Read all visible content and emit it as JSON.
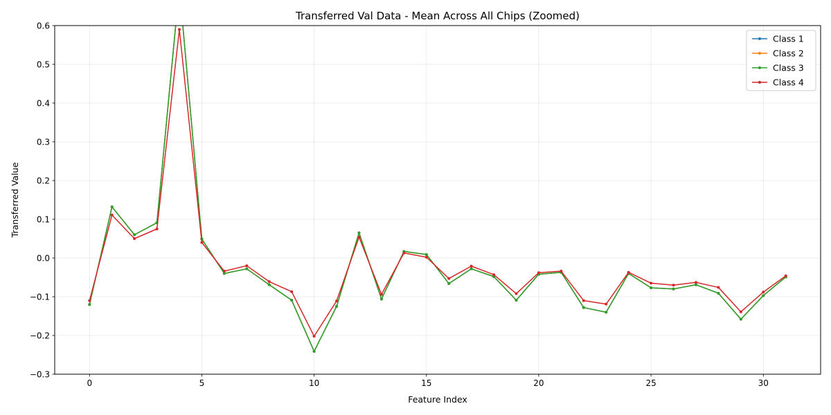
{
  "chart_data": {
    "type": "line",
    "title": "Transferred Val Data - Mean Across All Chips (Zoomed)",
    "xlabel": "Feature Index",
    "ylabel": "Transferred Value",
    "xlim": [
      -1.55,
      32.55
    ],
    "ylim": [
      -0.3,
      0.6
    ],
    "xticks": [
      0,
      5,
      10,
      15,
      20,
      25,
      30
    ],
    "yticks": [
      -0.3,
      -0.2,
      -0.1,
      0.0,
      0.1,
      0.2,
      0.3,
      0.4,
      0.5,
      0.6
    ],
    "grid": true,
    "legend": "upper right",
    "x": [
      0,
      1,
      2,
      3,
      4,
      5,
      6,
      7,
      8,
      9,
      10,
      11,
      12,
      13,
      14,
      15,
      16,
      17,
      18,
      19,
      20,
      21,
      22,
      23,
      24,
      25,
      26,
      27,
      28,
      29,
      30,
      31
    ],
    "series": [
      {
        "name": "Class 1",
        "color": "#1f77b4",
        "values": [
          -0.12,
          0.132,
          0.06,
          0.091,
          0.7,
          0.049,
          -0.04,
          -0.028,
          -0.069,
          -0.109,
          -0.241,
          -0.125,
          0.065,
          -0.106,
          0.017,
          0.009,
          -0.066,
          -0.028,
          -0.048,
          -0.109,
          -0.042,
          -0.037,
          -0.128,
          -0.14,
          -0.04,
          -0.077,
          -0.08,
          -0.069,
          -0.091,
          -0.158,
          -0.097,
          -0.049
        ]
      },
      {
        "name": "Class 2",
        "color": "#ff7f0e",
        "values": [
          -0.12,
          0.132,
          0.06,
          0.091,
          0.7,
          0.049,
          -0.04,
          -0.028,
          -0.069,
          -0.109,
          -0.241,
          -0.125,
          0.065,
          -0.106,
          0.017,
          0.009,
          -0.066,
          -0.028,
          -0.048,
          -0.109,
          -0.042,
          -0.037,
          -0.128,
          -0.14,
          -0.04,
          -0.077,
          -0.08,
          -0.069,
          -0.091,
          -0.158,
          -0.097,
          -0.049
        ]
      },
      {
        "name": "Class 3",
        "color": "#2ca02c",
        "values": [
          -0.12,
          0.132,
          0.06,
          0.091,
          0.7,
          0.049,
          -0.04,
          -0.028,
          -0.069,
          -0.109,
          -0.241,
          -0.125,
          0.065,
          -0.106,
          0.017,
          0.009,
          -0.066,
          -0.028,
          -0.048,
          -0.109,
          -0.042,
          -0.037,
          -0.128,
          -0.14,
          -0.04,
          -0.077,
          -0.08,
          -0.069,
          -0.091,
          -0.158,
          -0.097,
          -0.049
        ]
      },
      {
        "name": "Class 4",
        "color": "#d62728",
        "values": [
          -0.11,
          0.111,
          0.05,
          0.075,
          0.59,
          0.04,
          -0.034,
          -0.02,
          -0.061,
          -0.087,
          -0.202,
          -0.111,
          0.054,
          -0.094,
          0.013,
          0.002,
          -0.053,
          -0.021,
          -0.043,
          -0.092,
          -0.038,
          -0.034,
          -0.11,
          -0.119,
          -0.037,
          -0.065,
          -0.07,
          -0.063,
          -0.076,
          -0.139,
          -0.088,
          -0.046
        ]
      }
    ]
  }
}
